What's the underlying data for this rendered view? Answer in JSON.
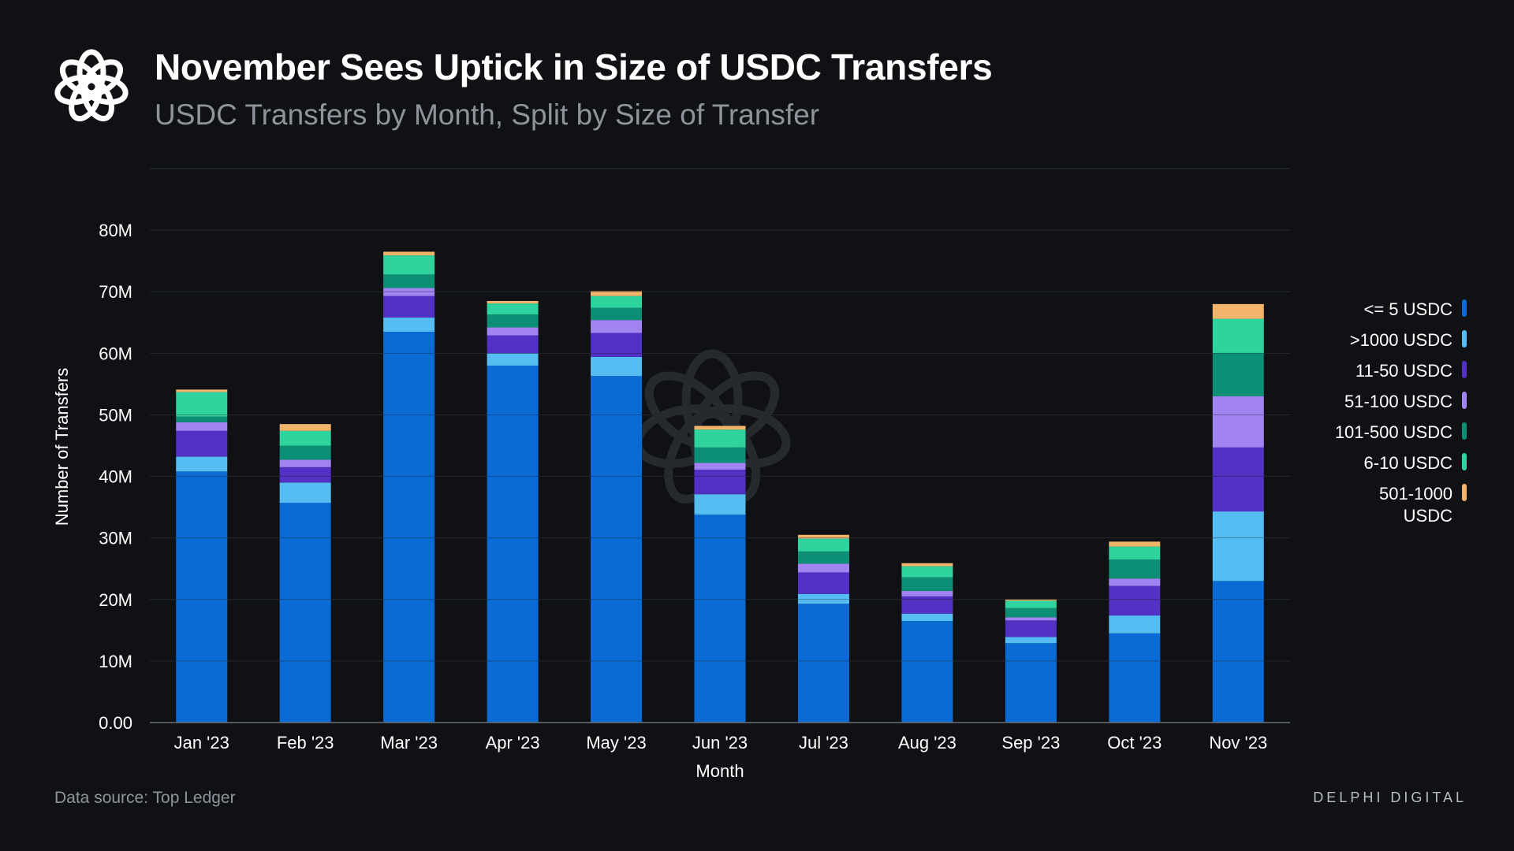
{
  "header": {
    "title": "November Sees Uptick in Size of USDC Transfers",
    "subtitle": "USDC Transfers by Month, Split by Size of Transfer"
  },
  "footer": {
    "source": "Data source: Top Ledger",
    "brand": "DELPHI DIGITAL"
  },
  "colors": {
    "background": "#0f1114",
    "grid": "#2e3238",
    "axis_text": "#ffffff"
  },
  "icons": {
    "logo": "delphi-flower-logo-icon",
    "watermark": "delphi-flower-watermark-icon"
  },
  "chart_data": {
    "type": "bar",
    "stacked": true,
    "xlabel": "Month",
    "ylabel": "Number of Transfers",
    "ylim": [
      0,
      90000000
    ],
    "y_ticks": [
      0,
      10000000,
      20000000,
      30000000,
      40000000,
      50000000,
      60000000,
      70000000,
      80000000
    ],
    "y_tick_labels": [
      "0.00",
      "10M",
      "20M",
      "30M",
      "40M",
      "50M",
      "60M",
      "70M",
      "80M"
    ],
    "grid": true,
    "legend_position": "right",
    "categories": [
      "Jan '23",
      "Feb '23",
      "Mar '23",
      "Apr '23",
      "May '23",
      "Jun '23",
      "Jul '23",
      "Aug '23",
      "Sep '23",
      "Oct '23",
      "Nov '23"
    ],
    "series": [
      {
        "name": "<= 5 USDC",
        "color": "#0b6bd4",
        "values": [
          40.8,
          35.7,
          63.5,
          58.0,
          56.3,
          33.8,
          19.3,
          16.5,
          12.9,
          14.5,
          23.0
        ]
      },
      {
        "name": ">1000 USDC",
        "color": "#55bdf2",
        "values": [
          2.4,
          3.3,
          2.3,
          2.0,
          3.1,
          3.3,
          1.6,
          1.2,
          1.0,
          2.9,
          11.3
        ]
      },
      {
        "name": "11-50 USDC",
        "color": "#5231c4",
        "values": [
          4.2,
          2.5,
          3.5,
          2.9,
          3.9,
          4.0,
          3.5,
          2.8,
          2.7,
          4.8,
          10.4
        ]
      },
      {
        "name": "51-100 USDC",
        "color": "#a283f2",
        "values": [
          1.4,
          1.2,
          1.3,
          1.3,
          2.1,
          1.1,
          1.4,
          0.9,
          0.5,
          1.2,
          8.3
        ]
      },
      {
        "name": "101-500 USDC",
        "color": "#0d8f75",
        "values": [
          0.9,
          2.3,
          2.2,
          2.1,
          2.0,
          2.5,
          2.0,
          2.2,
          1.5,
          3.1,
          7.0
        ]
      },
      {
        "name": "6-10 USDC",
        "color": "#2fd39e",
        "values": [
          4.0,
          2.4,
          3.1,
          1.8,
          1.9,
          2.9,
          2.1,
          1.8,
          1.2,
          2.1,
          5.6
        ]
      },
      {
        "name": "501-1000 USDC",
        "color": "#f2b46b",
        "values": [
          0.4,
          1.1,
          0.6,
          0.4,
          0.8,
          0.6,
          0.6,
          0.5,
          0.2,
          0.8,
          2.4
        ]
      }
    ],
    "value_unit": "millions"
  }
}
